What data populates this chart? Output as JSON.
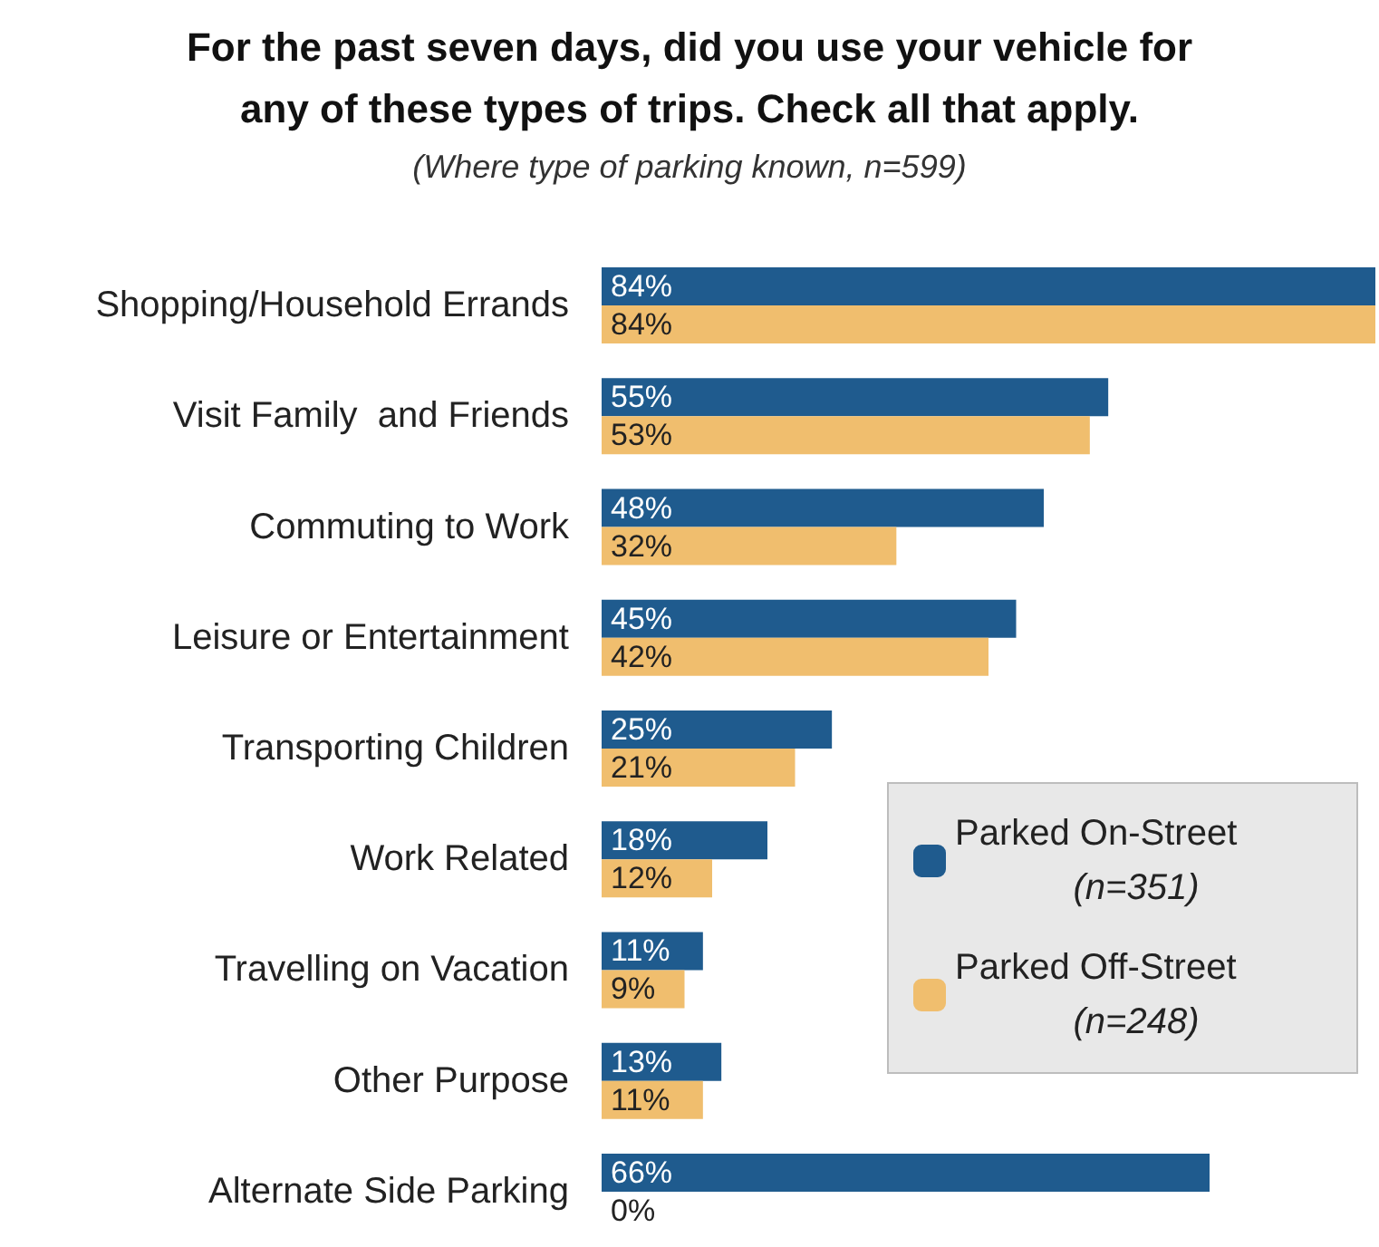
{
  "chart_data": {
    "type": "bar",
    "orientation": "horizontal",
    "title": "For the past seven days, did you use your vehicle for\nany of these types of trips. Check all that apply.",
    "subtitle": "(Where type of parking known, n=599)",
    "categories": [
      "Shopping/Household Errands",
      "Visit Family  and Friends",
      "Commuting to Work",
      "Leisure or Entertainment",
      "Transporting Children",
      "Work Related",
      "Travelling on Vacation",
      "Other Purpose",
      "Alternate Side Parking"
    ],
    "series": [
      {
        "name": "Parked On-Street (n=351)",
        "color": "#1f5b8e",
        "values": [
          84,
          55,
          48,
          45,
          25,
          18,
          11,
          13,
          66
        ],
        "value_labels": [
          "84%",
          "55%",
          "48%",
          "45%",
          "25%",
          "18%",
          "11%",
          "13%",
          "66%"
        ]
      },
      {
        "name": "Parked Off-Street (n=248)",
        "color": "#f0be6e",
        "values": [
          84,
          53,
          32,
          42,
          21,
          12,
          9,
          11,
          0
        ],
        "value_labels": [
          "84%",
          "53%",
          "32%",
          "42%",
          "21%",
          "12%",
          "9%",
          "11%",
          "0%"
        ]
      }
    ],
    "legend": "bottom right",
    "tick_labels": "y",
    "grid": false
  }
}
